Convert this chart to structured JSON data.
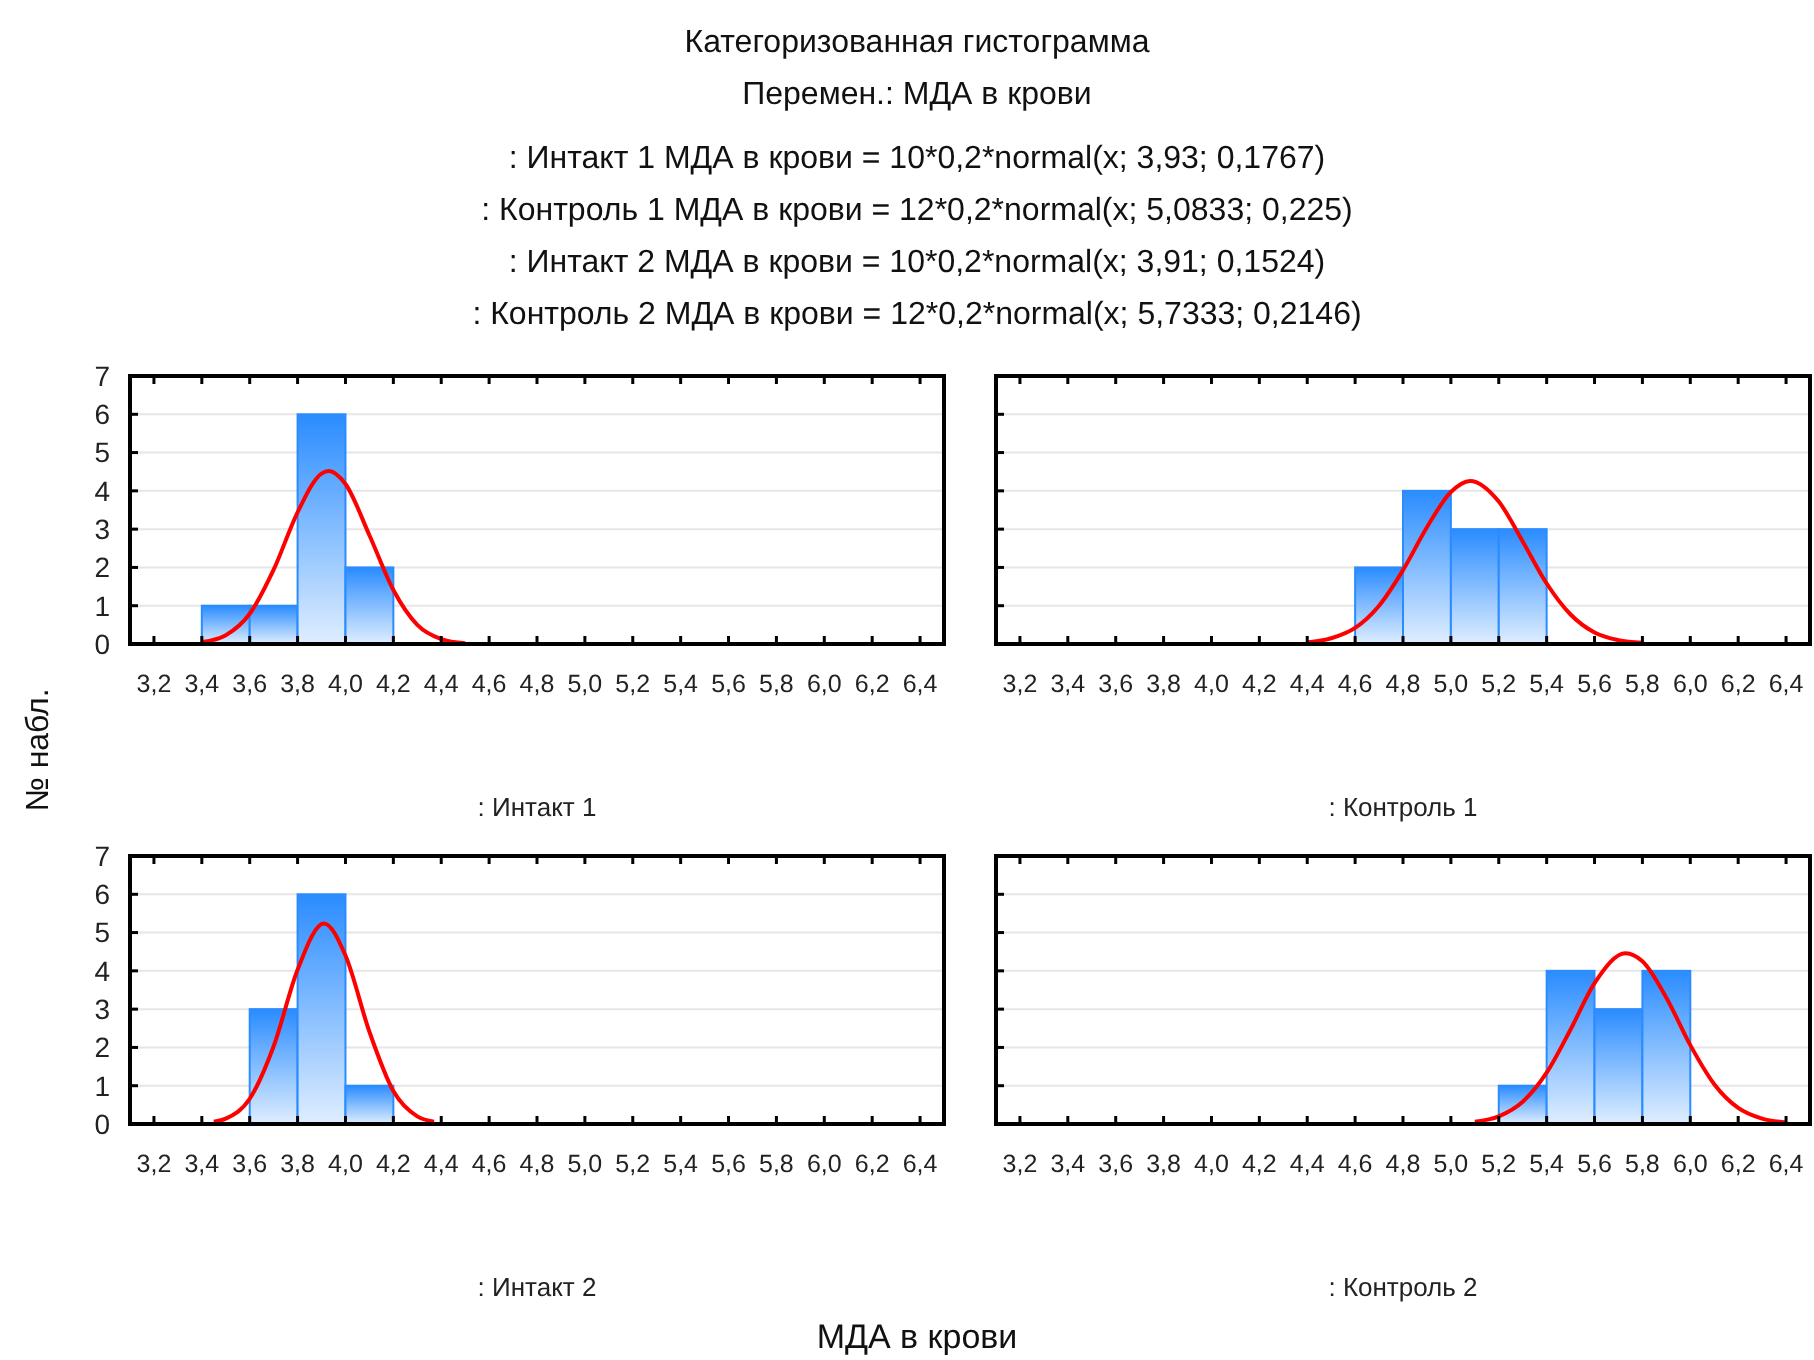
{
  "chart_data": [
    {
      "type": "histogram",
      "title": "Категоризованная гистограмма",
      "subtitle": "Перемен.: МДА в крови",
      "annotations": [
        ": Интакт 1 МДА в крови = 10*0,2*normal(x; 3,93; 0,1767)",
        ": Контроль 1 МДА в крови = 12*0,2*normal(x; 5,0833; 0,225)",
        ": Интакт 2 МДА в крови = 10*0,2*normal(x; 3,91; 0,1524)",
        ": Контроль 2 МДА в крови = 12*0,2*normal(x; 5,7333; 0,2146)"
      ],
      "ylabel": "№ набл.",
      "xlabel": ": Интакт 1",
      "xlim": [
        3.1,
        6.5
      ],
      "xticks": [
        {
          "value": 3.2,
          "label": "3,2"
        },
        {
          "value": 3.4,
          "label": "3,4"
        },
        {
          "value": 3.6,
          "label": "3,6"
        },
        {
          "value": 3.8,
          "label": "3,8"
        },
        {
          "value": 4.0,
          "label": "4,0"
        },
        {
          "value": 4.2,
          "label": "4,2"
        },
        {
          "value": 4.4,
          "label": "4,4"
        },
        {
          "value": 4.6,
          "label": "4,6"
        },
        {
          "value": 4.8,
          "label": "4,8"
        },
        {
          "value": 5.0,
          "label": "5,0"
        },
        {
          "value": 5.2,
          "label": "5,2"
        },
        {
          "value": 5.4,
          "label": "5,4"
        },
        {
          "value": 5.6,
          "label": "5,6"
        },
        {
          "value": 5.8,
          "label": "5,8"
        },
        {
          "value": 6.0,
          "label": "6,0"
        },
        {
          "value": 6.2,
          "label": "6,2"
        },
        {
          "value": 6.4,
          "label": "6,4"
        }
      ],
      "ylim": [
        0,
        7
      ],
      "yticks": [
        0,
        1,
        2,
        3,
        4,
        5,
        6,
        7
      ],
      "grid": "y",
      "series": [
        {
          "type": "histogram",
          "color": "#2a8cff",
          "bins": [
            3.4,
            3.6,
            3.8,
            4.0,
            4.2
          ],
          "values": [
            1,
            1,
            6,
            2
          ]
        },
        {
          "type": "line",
          "color": "#ff0000",
          "x": [
            3.4,
            3.5,
            3.6,
            3.7,
            3.8,
            3.9,
            3.93,
            4.0,
            4.1,
            4.2,
            4.3,
            4.4,
            4.5
          ],
          "values": [
            0.05,
            0.23,
            0.79,
            1.94,
            3.44,
            4.45,
            4.52,
            4.18,
            2.84,
            1.41,
            0.5,
            0.13,
            0.02
          ]
        }
      ]
    },
    {
      "type": "histogram",
      "xlabel": ": Контроль 1",
      "tick_labels": "x",
      "xlim": [
        3.1,
        6.5
      ],
      "xticks": [
        {
          "value": 3.2,
          "label": "3,2"
        },
        {
          "value": 3.4,
          "label": "3,4"
        },
        {
          "value": 3.6,
          "label": "3,6"
        },
        {
          "value": 3.8,
          "label": "3,8"
        },
        {
          "value": 4.0,
          "label": "4,0"
        },
        {
          "value": 4.2,
          "label": "4,2"
        },
        {
          "value": 4.4,
          "label": "4,4"
        },
        {
          "value": 4.6,
          "label": "4,6"
        },
        {
          "value": 4.8,
          "label": "4,8"
        },
        {
          "value": 5.0,
          "label": "5,0"
        },
        {
          "value": 5.2,
          "label": "5,2"
        },
        {
          "value": 5.4,
          "label": "5,4"
        },
        {
          "value": 5.6,
          "label": "5,6"
        },
        {
          "value": 5.8,
          "label": "5,8"
        },
        {
          "value": 6.0,
          "label": "6,0"
        },
        {
          "value": 6.2,
          "label": "6,2"
        },
        {
          "value": 6.4,
          "label": "6,4"
        }
      ],
      "ylim": [
        0,
        7
      ],
      "yticks": [
        0,
        1,
        2,
        3,
        4,
        5,
        6,
        7
      ],
      "grid": "y",
      "series": [
        {
          "type": "histogram",
          "color": "#2a8cff",
          "bins": [
            4.6,
            4.8,
            5.0,
            5.2,
            5.4
          ],
          "values": [
            2,
            4,
            3,
            3
          ]
        },
        {
          "type": "line",
          "color": "#ff0000",
          "x": [
            4.4,
            4.5,
            4.6,
            4.7,
            4.8,
            4.9,
            5.0,
            5.08,
            5.2,
            5.3,
            5.4,
            5.5,
            5.6,
            5.7,
            5.8
          ],
          "values": [
            0.04,
            0.15,
            0.42,
            1.0,
            1.93,
            3.05,
            3.97,
            4.26,
            3.72,
            2.68,
            1.58,
            0.77,
            0.3,
            0.1,
            0.03
          ]
        }
      ]
    },
    {
      "type": "histogram",
      "xlabel": ": Интакт 2",
      "annotations": [
        "МДА в крови"
      ],
      "xlim": [
        3.1,
        6.5
      ],
      "xticks": [
        {
          "value": 3.2,
          "label": "3,2"
        },
        {
          "value": 3.4,
          "label": "3,4"
        },
        {
          "value": 3.6,
          "label": "3,6"
        },
        {
          "value": 3.8,
          "label": "3,8"
        },
        {
          "value": 4.0,
          "label": "4,0"
        },
        {
          "value": 4.2,
          "label": "4,2"
        },
        {
          "value": 4.4,
          "label": "4,4"
        },
        {
          "value": 4.6,
          "label": "4,6"
        },
        {
          "value": 4.8,
          "label": "4,8"
        },
        {
          "value": 5.0,
          "label": "5,0"
        },
        {
          "value": 5.2,
          "label": "5,2"
        },
        {
          "value": 5.4,
          "label": "5,4"
        },
        {
          "value": 5.6,
          "label": "5,6"
        },
        {
          "value": 5.8,
          "label": "5,8"
        },
        {
          "value": 6.0,
          "label": "6,0"
        },
        {
          "value": 6.2,
          "label": "6,2"
        },
        {
          "value": 6.4,
          "label": "6,4"
        }
      ],
      "ylim": [
        0,
        7
      ],
      "yticks": [
        0,
        1,
        2,
        3,
        4,
        5,
        6,
        7
      ],
      "grid": "y",
      "series": [
        {
          "type": "histogram",
          "color": "#2a8cff",
          "bins": [
            3.6,
            3.8,
            4.0,
            4.2
          ],
          "values": [
            3,
            6,
            1
          ]
        },
        {
          "type": "line",
          "color": "#ff0000",
          "x": [
            3.45,
            3.5,
            3.6,
            3.7,
            3.8,
            3.91,
            4.0,
            4.1,
            4.2,
            4.3,
            4.37
          ],
          "values": [
            0.06,
            0.14,
            0.66,
            2.03,
            4.03,
            5.24,
            4.4,
            2.41,
            0.86,
            0.2,
            0.06
          ]
        }
      ]
    },
    {
      "type": "histogram",
      "xlabel": ": Контроль 2",
      "tick_labels": "x",
      "xlim": [
        3.1,
        6.5
      ],
      "xticks": [
        {
          "value": 3.2,
          "label": "3,2"
        },
        {
          "value": 3.4,
          "label": "3,4"
        },
        {
          "value": 3.6,
          "label": "3,6"
        },
        {
          "value": 3.8,
          "label": "3,8"
        },
        {
          "value": 4.0,
          "label": "4,0"
        },
        {
          "value": 4.2,
          "label": "4,2"
        },
        {
          "value": 4.4,
          "label": "4,4"
        },
        {
          "value": 4.6,
          "label": "4,6"
        },
        {
          "value": 4.8,
          "label": "4,8"
        },
        {
          "value": 5.0,
          "label": "5,0"
        },
        {
          "value": 5.2,
          "label": "5,2"
        },
        {
          "value": 5.4,
          "label": "5,4"
        },
        {
          "value": 5.6,
          "label": "5,6"
        },
        {
          "value": 5.8,
          "label": "5,8"
        },
        {
          "value": 6.0,
          "label": "6,0"
        },
        {
          "value": 6.2,
          "label": "6,2"
        },
        {
          "value": 6.4,
          "label": "6,4"
        }
      ],
      "ylim": [
        0,
        7
      ],
      "yticks": [
        0,
        1,
        2,
        3,
        4,
        5,
        6,
        7
      ],
      "grid": "y",
      "series": [
        {
          "type": "histogram",
          "color": "#2a8cff",
          "bins": [
            5.2,
            5.4,
            5.6,
            5.8,
            6.0
          ],
          "values": [
            1,
            4,
            3,
            4
          ]
        },
        {
          "type": "line",
          "color": "#ff0000",
          "x": [
            5.1,
            5.2,
            5.3,
            5.4,
            5.5,
            5.6,
            5.73,
            5.8,
            5.9,
            6.0,
            6.1,
            6.2,
            6.3,
            6.4
          ],
          "values": [
            0.06,
            0.2,
            0.58,
            1.34,
            2.47,
            3.68,
            4.46,
            4.25,
            3.3,
            2.06,
            1.04,
            0.42,
            0.14,
            0.04
          ]
        }
      ]
    }
  ]
}
